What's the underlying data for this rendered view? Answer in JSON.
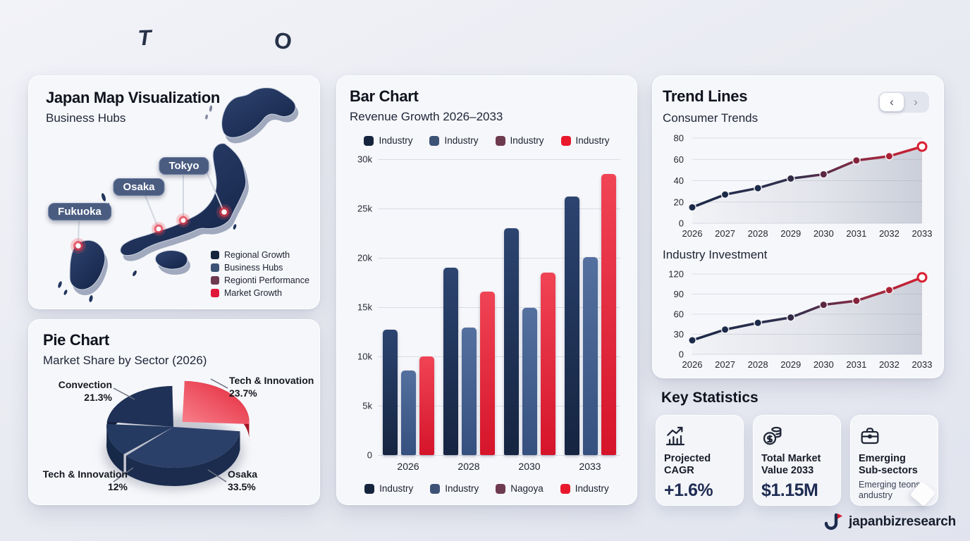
{
  "artifacts": {
    "glyph_t": "T",
    "glyph_o": "O"
  },
  "map_card": {
    "title": "Japan Map Visualization",
    "subtitle": "Business Hubs",
    "cities": [
      {
        "name": "Tokyo"
      },
      {
        "name": "Osaka"
      },
      {
        "name": "Fukuoka"
      }
    ],
    "legend": [
      {
        "label": "Regional Growth",
        "color": "#16243d"
      },
      {
        "label": "Business Hubs",
        "color": "#3d5376"
      },
      {
        "label": "Regionti Performance",
        "color": "#6e3a4e"
      },
      {
        "label": "Market Growth",
        "color": "#e0193c"
      }
    ]
  },
  "pie_card": {
    "title": "Pie Chart",
    "subtitle": "Market Share by Sector (2026)"
  },
  "bar_card": {
    "title": "Bar Chart",
    "subtitle": "Revenue Growth 2026–2033",
    "legend_top": [
      {
        "label": "Industry",
        "color": "#16243d"
      },
      {
        "label": "Industry",
        "color": "#3d5376"
      },
      {
        "label": "Industry",
        "color": "#6e3a4e"
      },
      {
        "label": "Industry",
        "color": "#e8192c"
      }
    ],
    "legend_bottom": [
      {
        "label": "Industry",
        "color": "#16243d"
      },
      {
        "label": "Industry",
        "color": "#3d5376"
      },
      {
        "label": "Nagoya",
        "color": "#6e3a4e"
      },
      {
        "label": "Industry",
        "color": "#e8192c"
      }
    ]
  },
  "trend_card": {
    "title": "Trend Lines",
    "subtitle": "Consumer Trends",
    "second_chart_title": "Industry Investment",
    "pagination": {
      "prev": "‹",
      "next": "›"
    }
  },
  "key_stats": {
    "title": "Key Statistics",
    "cards": [
      {
        "icon": "growth-chart-icon",
        "label": "Projected CAGR",
        "value": "+1.6%"
      },
      {
        "icon": "coins-icon",
        "label": "Total Market Value 2033",
        "value": "$1.15M"
      },
      {
        "icon": "briefcase-icon",
        "label": "Emerging Sub-sectors",
        "note": "Emerging teons andustry"
      }
    ]
  },
  "brand": {
    "name": "japanbizresearch"
  },
  "chart_data": [
    {
      "type": "pie",
      "title": "Market Share by Sector (2026)",
      "slices": [
        {
          "label": "Tech & Innovation",
          "value": 23.7,
          "pct": "23.7%",
          "color": "#e32638",
          "highlight": "#f8808c",
          "side": "#a31425",
          "exploded": true
        },
        {
          "label": "Osaka",
          "value": 33.5,
          "pct": "33.5%",
          "color": "#2b4069",
          "side": "#1b2c4e"
        },
        {
          "label": "Tech & Innovation",
          "value": 12,
          "pct": "12%",
          "color": "#243a61",
          "side": "#172948"
        },
        {
          "label": "Convection",
          "value": 21.3,
          "pct": "21.3%",
          "color": "#1f3157",
          "side": "#141f3d"
        }
      ],
      "legend_position": "none"
    },
    {
      "type": "bar",
      "title": "Revenue Growth 2026–2033",
      "categories": [
        "2026",
        "2028",
        "2030",
        "2033"
      ],
      "series": [
        {
          "name": "Industry",
          "color_top": "#2c4470",
          "color_bottom": "#152440",
          "values": [
            12700,
            19000,
            23000,
            26200
          ]
        },
        {
          "name": "Industry",
          "color_top": "#54709f",
          "color_bottom": "#35507f",
          "values": [
            8600,
            12900,
            14900,
            20100
          ]
        },
        {
          "name": "Industry",
          "color_top": "#f04455",
          "color_bottom": "#d5142a",
          "values": [
            10000,
            16600,
            18500,
            28500
          ]
        }
      ],
      "ylim": [
        0,
        30000
      ],
      "yticks": [
        {
          "v": 0,
          "label": "0"
        },
        {
          "v": 5000,
          "label": "5k"
        },
        {
          "v": 10000,
          "label": "10k"
        },
        {
          "v": 15000,
          "label": "15k"
        },
        {
          "v": 20000,
          "label": "20k"
        },
        {
          "v": 25000,
          "label": "25k"
        },
        {
          "v": 30000,
          "label": "30k"
        }
      ],
      "grid": true,
      "legend_position": "top-and-bottom"
    },
    {
      "type": "line",
      "title": "Consumer Trends",
      "x": [
        "2026",
        "2027",
        "2028",
        "2029",
        "2030",
        "2031",
        "2032",
        "2033"
      ],
      "values": [
        15,
        27,
        33,
        42,
        46,
        59,
        63,
        72
      ],
      "ylim": [
        0,
        80
      ],
      "yticks": [
        0,
        20,
        40,
        60,
        80
      ],
      "grid": true,
      "legend_position": "none"
    },
    {
      "type": "line",
      "title": "Industry Investment",
      "x": [
        "2026",
        "2027",
        "2028",
        "2029",
        "2030",
        "2031",
        "2032",
        "2033"
      ],
      "values": [
        21,
        37,
        47,
        55,
        74,
        80,
        96,
        115
      ],
      "ylim": [
        0,
        120
      ],
      "yticks": [
        0,
        30,
        60,
        90,
        120
      ],
      "grid": true,
      "legend_position": "none"
    }
  ]
}
